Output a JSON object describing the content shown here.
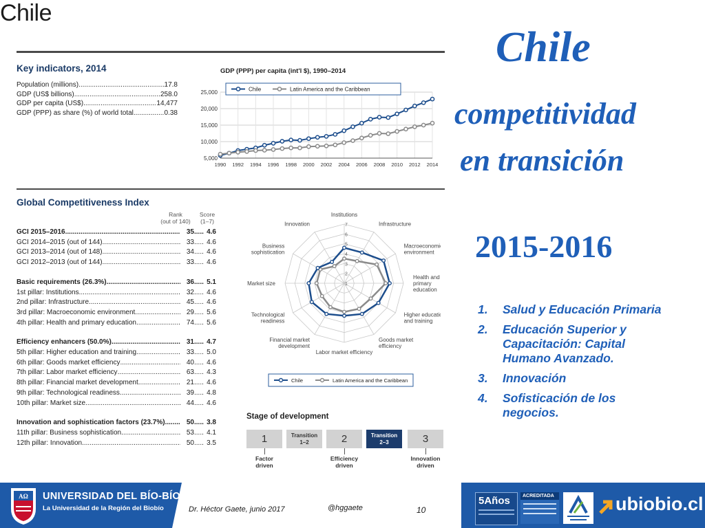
{
  "left": {
    "country": "Chile",
    "key_indicators": {
      "title": "Key indicators, 2014",
      "rows": [
        {
          "label": "Population (millions)",
          "value": "17.8"
        },
        {
          "label": "GDP (US$ billions)",
          "value": "258.0"
        },
        {
          "label": "GDP per capita (US$)",
          "value": "14,477"
        },
        {
          "label": "GDP (PPP) as share (%) of world total",
          "value": "0.38"
        }
      ]
    },
    "gci": {
      "title": "Global Competitiveness Index",
      "rank_header": "Rank\n(out of 140)",
      "score_header": "Score\n(1–7)",
      "groups": [
        {
          "rows": [
            {
              "label": "GCI 2015–2016",
              "rank": "35",
              "score": "4.6",
              "bold": true
            },
            {
              "label": "GCI 2014–2015 (out of 144)",
              "rank": "33",
              "score": "4.6"
            },
            {
              "label": "GCI 2013–2014 (out of 148)",
              "rank": "34",
              "score": "4.6"
            },
            {
              "label": "GCI 2012–2013 (out of 144)",
              "rank": "33",
              "score": "4.6"
            }
          ]
        },
        {
          "rows": [
            {
              "label": "Basic requirements (26.3%)",
              "rank": "36",
              "score": "5.1",
              "bold": true
            },
            {
              "label": "1st pillar: Institutions",
              "rank": "32",
              "score": "4.6"
            },
            {
              "label": "2nd pillar: Infrastructure",
              "rank": "45",
              "score": "4.6"
            },
            {
              "label": "3rd pillar: Macroeconomic environment",
              "rank": "29",
              "score": "5.6"
            },
            {
              "label": "4th pillar: Health and primary education",
              "rank": "74",
              "score": "5.6"
            }
          ]
        },
        {
          "rows": [
            {
              "label": "Efficiency enhancers (50.0%)",
              "rank": "31",
              "score": "4.7",
              "bold": true
            },
            {
              "label": "5th pillar: Higher education and training",
              "rank": "33",
              "score": "5.0"
            },
            {
              "label": "6th pillar: Goods market efficiency",
              "rank": "40",
              "score": "4.6"
            },
            {
              "label": "7th pillar: Labor market efficiency",
              "rank": "63",
              "score": "4.3"
            },
            {
              "label": "8th pillar: Financial market development",
              "rank": "21",
              "score": "4.6"
            },
            {
              "label": "9th pillar: Technological readiness",
              "rank": "39",
              "score": "4.8"
            },
            {
              "label": "10th pillar: Market size",
              "rank": "44",
              "score": "4.6"
            }
          ]
        },
        {
          "rows": [
            {
              "label": "Innovation and sophistication factors (23.7%)",
              "rank": "50",
              "score": "3.8",
              "bold": true
            },
            {
              "label": "11th pillar: Business sophistication",
              "rank": "53",
              "score": "4.1"
            },
            {
              "label": "12th pillar: Innovation",
              "rank": "50",
              "score": "3.5"
            }
          ]
        }
      ]
    },
    "stage": {
      "title": "Stage of development",
      "boxes": [
        {
          "label": "1",
          "caption": "Factor\ndriven",
          "active": false,
          "kind": "num"
        },
        {
          "label": "Transition\n1–2",
          "caption": "",
          "active": false,
          "kind": "trans"
        },
        {
          "label": "2",
          "caption": "Efficiency\ndriven",
          "active": false,
          "kind": "num"
        },
        {
          "label": "Transition\n2–3",
          "caption": "",
          "active": true,
          "kind": "trans"
        },
        {
          "label": "3",
          "caption": "Innovation\ndriven",
          "active": false,
          "kind": "num"
        }
      ],
      "active_color": "#1c3c6c"
    }
  },
  "chart_data": [
    {
      "type": "line",
      "title": "GDP (PPP) per capita (int'l $), 1990–2014",
      "x": [
        1990,
        1991,
        1992,
        1993,
        1994,
        1995,
        1996,
        1997,
        1998,
        1999,
        2000,
        2001,
        2002,
        2003,
        2004,
        2005,
        2006,
        2007,
        2008,
        2009,
        2010,
        2011,
        2012,
        2013,
        2014
      ],
      "xticks": [
        "1990",
        "1992",
        "1994",
        "1996",
        "1998",
        "2000",
        "2002",
        "2004",
        "2006",
        "2008",
        "2010",
        "2012",
        "2014"
      ],
      "ylim": [
        5000,
        25000
      ],
      "yticks": [
        "5,000",
        "10,000",
        "15,000",
        "20,000",
        "25,000"
      ],
      "series": [
        {
          "name": "Chile",
          "color": "#1c4d8c",
          "values": [
            5800,
            6500,
            7300,
            7700,
            8100,
            8900,
            9500,
            10100,
            10500,
            10400,
            10900,
            11300,
            11600,
            12200,
            13300,
            14500,
            15600,
            16800,
            17400,
            17300,
            18400,
            19600,
            20800,
            21800,
            22900
          ]
        },
        {
          "name": "Latin America and the Caribbean",
          "color": "#8a8a8a",
          "values": [
            6200,
            6500,
            6800,
            7000,
            7300,
            7400,
            7600,
            7900,
            8100,
            8100,
            8500,
            8600,
            8700,
            9000,
            9700,
            10300,
            11100,
            11900,
            12500,
            12400,
            13100,
            13800,
            14500,
            15000,
            15600
          ]
        }
      ],
      "grid": true,
      "legend": "top"
    },
    {
      "type": "radar",
      "axes": [
        "Institutions",
        "Infrastructure",
        "Macroeconomic\nenvironment",
        "Health and\nprimary\neducation",
        "Higher education\nand training",
        "Goods market\nefficiency",
        "Labor market efficiency",
        "Financial market\ndevelopment",
        "Technological\nreadiness",
        "Market size",
        "Business\nsophistication",
        "Innovation"
      ],
      "rlim": [
        1,
        7
      ],
      "rticks": [
        "1",
        "2",
        "3",
        "4",
        "5",
        "6",
        "7"
      ],
      "series": [
        {
          "name": "Chile",
          "color": "#1c4d8c",
          "values": [
            4.6,
            4.6,
            5.6,
            5.6,
            5.0,
            4.6,
            4.3,
            4.6,
            4.8,
            4.6,
            4.1,
            3.5
          ]
        },
        {
          "name": "Latin America and the Caribbean",
          "color": "#8a8a8a",
          "values": [
            3.5,
            3.6,
            4.8,
            5.2,
            4.1,
            4.0,
            3.9,
            3.8,
            3.6,
            3.8,
            3.8,
            3.0
          ]
        }
      ],
      "legend": "bottom"
    }
  ],
  "right": {
    "title_line1": "Chile",
    "title_line2": "competitividad",
    "title_line3": "en transición",
    "period": "2015-2016",
    "priorities": [
      {
        "num": "1.",
        "text": "Salud y Educación Primaria"
      },
      {
        "num": "2.",
        "text": "Educación Superior  y Capacitación: Capital Humano Avanzado."
      },
      {
        "num": "3.",
        "text": "Innovación"
      },
      {
        "num": "4.",
        "text": "Sofisticación de los negocios."
      }
    ],
    "title_color": "#1f5fb8"
  },
  "footer": {
    "university": "UNIVERSIDAD DEL BÍO-BÍO",
    "subtitle": "La Universidad de la Región del Biobío",
    "author": "Dr. Héctor Gaete,  junio 2017",
    "handle": "@hggaete",
    "page": "10",
    "anos": "5Años",
    "acreditada": "ACREDITADA",
    "site": "ubiobio.cl",
    "bar_color": "#1e5aa8"
  }
}
